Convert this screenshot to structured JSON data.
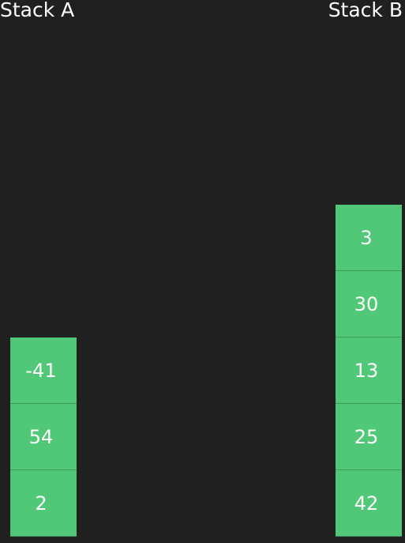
{
  "stack_a": {
    "label": "Stack A",
    "items": [
      "-41",
      "54",
      "2"
    ]
  },
  "stack_b": {
    "label": "Stack B",
    "items": [
      "3",
      "30",
      "13",
      "25",
      "42"
    ]
  },
  "colors": {
    "background": "#202020",
    "box": "#50c878",
    "text": "#ffffff"
  }
}
